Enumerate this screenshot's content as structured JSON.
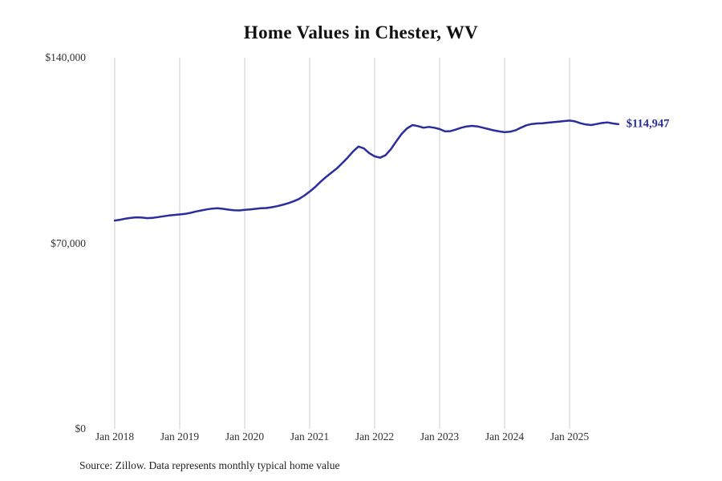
{
  "chart_data": {
    "type": "line",
    "title": "Home Values in Chester, WV",
    "source": "Source: Zillow. Data represents monthly typical home value",
    "end_label": "$114,947",
    "end_value": 114947,
    "x_start": "Jan 2018",
    "frequency": "monthly",
    "ylim": [
      0,
      140000
    ],
    "line_color": "#2b2d9c",
    "grid_color": "#cccccc",
    "grid": "vertical-only",
    "legend": "none",
    "y_ticks": [
      {
        "label": "$0",
        "value": 0
      },
      {
        "label": "$70,000",
        "value": 70000
      },
      {
        "label": "$140,000",
        "value": 140000
      }
    ],
    "x_ticks": [
      {
        "label": "Jan 2018",
        "month": 0
      },
      {
        "label": "Jan 2019",
        "month": 12
      },
      {
        "label": "Jan 2020",
        "month": 24
      },
      {
        "label": "Jan 2021",
        "month": 36
      },
      {
        "label": "Jan 2022",
        "month": 48
      },
      {
        "label": "Jan 2023",
        "month": 60
      },
      {
        "label": "Jan 2024",
        "month": 72
      },
      {
        "label": "Jan 2025",
        "month": 84
      }
    ],
    "values": [
      78600,
      78900,
      79300,
      79600,
      79800,
      79700,
      79500,
      79600,
      79900,
      80200,
      80500,
      80700,
      80900,
      81100,
      81500,
      82000,
      82400,
      82800,
      83100,
      83200,
      83000,
      82700,
      82500,
      82400,
      82600,
      82800,
      83000,
      83200,
      83300,
      83600,
      84000,
      84500,
      85100,
      85800,
      86700,
      88000,
      89500,
      91200,
      93200,
      95000,
      96600,
      98200,
      100200,
      102300,
      104600,
      106500,
      105800,
      104000,
      102800,
      102300,
      103200,
      105500,
      108500,
      111300,
      113400,
      114600,
      114200,
      113600,
      113900,
      113600,
      113100,
      112200,
      112300,
      112900,
      113600,
      114100,
      114300,
      114100,
      113600,
      113100,
      112600,
      112200,
      111900,
      112100,
      112600,
      113600,
      114500,
      115000,
      115200,
      115300,
      115500,
      115700,
      115900,
      116100,
      116300,
      116000,
      115300,
      114800,
      114600,
      115000,
      115400,
      115600,
      115200,
      114947
    ]
  }
}
